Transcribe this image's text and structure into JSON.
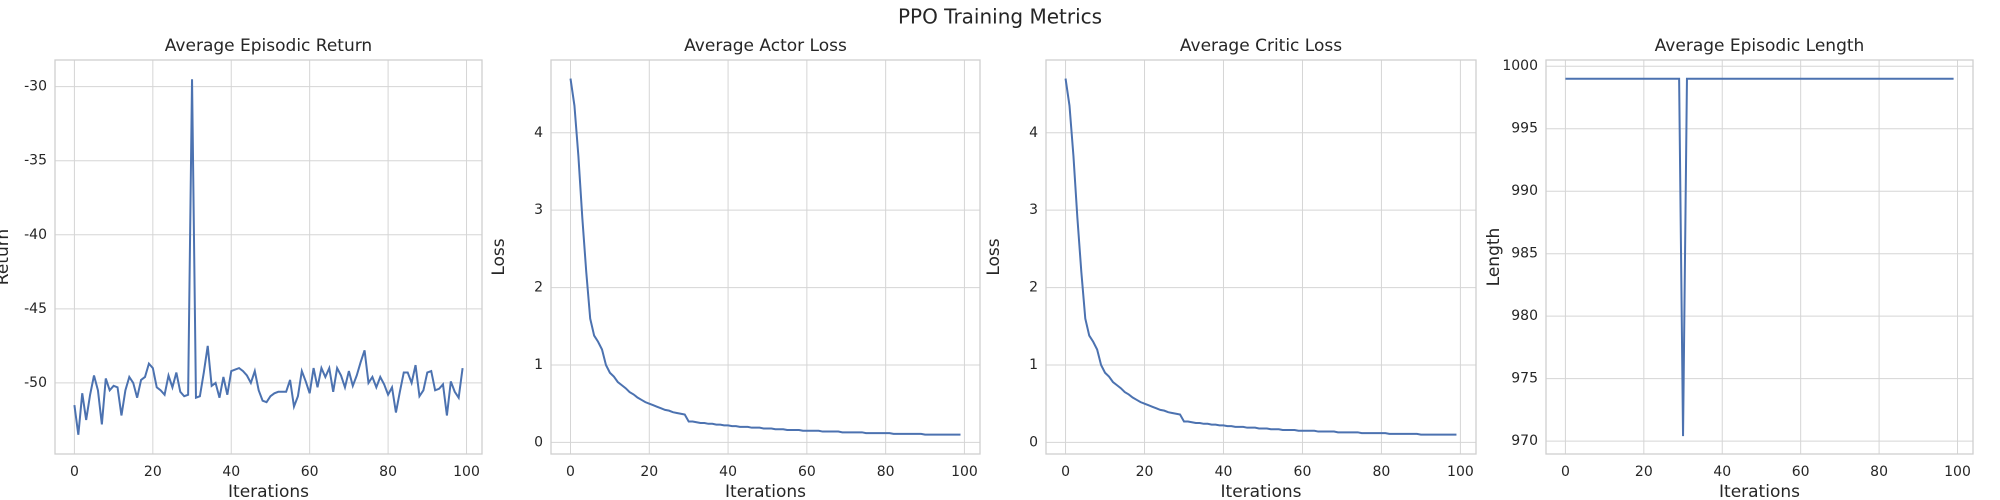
{
  "title": "PPO Training Metrics",
  "chart_data": [
    {
      "type": "line",
      "title": "Average Episodic Return",
      "x_label": "Iterations",
      "y_label": "Return",
      "x": [
        0,
        1,
        2,
        3,
        4,
        5,
        6,
        7,
        8,
        9,
        10,
        11,
        12,
        13,
        14,
        15,
        16,
        17,
        18,
        19,
        20,
        21,
        22,
        23,
        24,
        25,
        26,
        27,
        28,
        29,
        30,
        31,
        32,
        33,
        34,
        35,
        36,
        37,
        38,
        39,
        40,
        41,
        42,
        43,
        44,
        45,
        46,
        47,
        48,
        49,
        50,
        51,
        52,
        53,
        54,
        55,
        56,
        57,
        58,
        59,
        60,
        61,
        62,
        63,
        64,
        65,
        66,
        67,
        68,
        69,
        70,
        71,
        72,
        73,
        74,
        75,
        76,
        77,
        78,
        79,
        80,
        81,
        82,
        83,
        84,
        85,
        86,
        87,
        88,
        89,
        90,
        91,
        92,
        93,
        94,
        95,
        96,
        97,
        98,
        99
      ],
      "series": [
        {
          "color": "#4c72b0",
          "values": [
            -51.5,
            -53.5,
            -50.7,
            -52.5,
            -50.8,
            -49.5,
            -50.5,
            -52.8,
            -49.7,
            -50.5,
            -50.2,
            -50.3,
            -52.2,
            -50.5,
            -49.6,
            -50.0,
            -51.0,
            -49.8,
            -49.6,
            -48.7,
            -49.0,
            -50.3,
            -50.5,
            -50.8,
            -49.5,
            -50.3,
            -49.3,
            -50.6,
            -50.9,
            -50.8,
            -29.5,
            -51.0,
            -50.9,
            -49.3,
            -47.5,
            -50.2,
            -50.0,
            -51.0,
            -49.6,
            -50.8,
            -49.2,
            -49.1,
            -49.0,
            -49.2,
            -49.5,
            -50.0,
            -49.2,
            -50.5,
            -51.2,
            -51.3,
            -50.9,
            -50.7,
            -50.6,
            -50.6,
            -50.6,
            -49.8,
            -51.6,
            -50.9,
            -49.2,
            -49.9,
            -50.7,
            -49.0,
            -50.3,
            -49.0,
            -49.6,
            -49.0,
            -50.6,
            -49.0,
            -49.5,
            -50.3,
            -49.2,
            -50.2,
            -49.5,
            -48.6,
            -47.8,
            -50.0,
            -49.6,
            -50.3,
            -49.6,
            -50.1,
            -50.8,
            -50.3,
            -52.0,
            -50.6,
            -49.3,
            -49.3,
            -50.0,
            -48.8,
            -50.9,
            -50.5,
            -49.3,
            -49.2,
            -50.5,
            -50.4,
            -50.1,
            -52.2,
            -49.9,
            -50.6,
            -51.0,
            -49.0
          ]
        }
      ],
      "xlim": [
        -4.95,
        103.95
      ],
      "xticks": [
        0,
        20,
        40,
        60,
        80,
        100
      ],
      "ylim": [
        -54.8,
        -28.2
      ],
      "yticks": [
        -50,
        -45,
        -40,
        -35,
        -30
      ],
      "grid": true
    },
    {
      "type": "line",
      "title": "Average Actor Loss",
      "x_label": "Iterations",
      "y_label": "Loss",
      "x": [
        0,
        1,
        2,
        3,
        4,
        5,
        6,
        7,
        8,
        9,
        10,
        11,
        12,
        13,
        14,
        15,
        16,
        17,
        18,
        19,
        20,
        21,
        22,
        23,
        24,
        25,
        26,
        27,
        28,
        29,
        30,
        31,
        32,
        33,
        34,
        35,
        36,
        37,
        38,
        39,
        40,
        41,
        42,
        43,
        44,
        45,
        46,
        47,
        48,
        49,
        50,
        51,
        52,
        53,
        54,
        55,
        56,
        57,
        58,
        59,
        60,
        61,
        62,
        63,
        64,
        65,
        66,
        67,
        68,
        69,
        70,
        71,
        72,
        73,
        74,
        75,
        76,
        77,
        78,
        79,
        80,
        81,
        82,
        83,
        84,
        85,
        86,
        87,
        88,
        89,
        90,
        91,
        92,
        93,
        94,
        95,
        96,
        97,
        98,
        99
      ],
      "series": [
        {
          "color": "#4c72b0",
          "values": [
            4.7,
            4.35,
            3.7,
            2.9,
            2.2,
            1.6,
            1.38,
            1.3,
            1.2,
            1.0,
            0.9,
            0.85,
            0.78,
            0.74,
            0.7,
            0.65,
            0.62,
            0.58,
            0.55,
            0.52,
            0.5,
            0.48,
            0.46,
            0.44,
            0.42,
            0.41,
            0.39,
            0.38,
            0.37,
            0.36,
            0.27,
            0.27,
            0.26,
            0.25,
            0.25,
            0.24,
            0.24,
            0.23,
            0.23,
            0.22,
            0.22,
            0.21,
            0.21,
            0.2,
            0.2,
            0.2,
            0.19,
            0.19,
            0.19,
            0.18,
            0.18,
            0.18,
            0.17,
            0.17,
            0.17,
            0.16,
            0.16,
            0.16,
            0.16,
            0.15,
            0.15,
            0.15,
            0.15,
            0.15,
            0.14,
            0.14,
            0.14,
            0.14,
            0.14,
            0.13,
            0.13,
            0.13,
            0.13,
            0.13,
            0.13,
            0.12,
            0.12,
            0.12,
            0.12,
            0.12,
            0.12,
            0.12,
            0.11,
            0.11,
            0.11,
            0.11,
            0.11,
            0.11,
            0.11,
            0.11,
            0.1,
            0.1,
            0.1,
            0.1,
            0.1,
            0.1,
            0.1,
            0.1,
            0.1,
            0.1
          ]
        }
      ],
      "xlim": [
        -4.95,
        103.95
      ],
      "xticks": [
        0,
        20,
        40,
        60,
        80,
        100
      ],
      "ylim": [
        -0.15,
        4.94
      ],
      "yticks": [
        0,
        1,
        2,
        3,
        4
      ],
      "grid": true
    },
    {
      "type": "line",
      "title": "Average Critic Loss",
      "x_label": "Iterations",
      "y_label": "Loss",
      "x": [
        0,
        1,
        2,
        3,
        4,
        5,
        6,
        7,
        8,
        9,
        10,
        11,
        12,
        13,
        14,
        15,
        16,
        17,
        18,
        19,
        20,
        21,
        22,
        23,
        24,
        25,
        26,
        27,
        28,
        29,
        30,
        31,
        32,
        33,
        34,
        35,
        36,
        37,
        38,
        39,
        40,
        41,
        42,
        43,
        44,
        45,
        46,
        47,
        48,
        49,
        50,
        51,
        52,
        53,
        54,
        55,
        56,
        57,
        58,
        59,
        60,
        61,
        62,
        63,
        64,
        65,
        66,
        67,
        68,
        69,
        70,
        71,
        72,
        73,
        74,
        75,
        76,
        77,
        78,
        79,
        80,
        81,
        82,
        83,
        84,
        85,
        86,
        87,
        88,
        89,
        90,
        91,
        92,
        93,
        94,
        95,
        96,
        97,
        98,
        99
      ],
      "series": [
        {
          "color": "#4c72b0",
          "values": [
            4.7,
            4.35,
            3.7,
            2.9,
            2.2,
            1.6,
            1.38,
            1.3,
            1.2,
            1.0,
            0.9,
            0.85,
            0.78,
            0.74,
            0.7,
            0.65,
            0.62,
            0.58,
            0.55,
            0.52,
            0.5,
            0.48,
            0.46,
            0.44,
            0.42,
            0.41,
            0.39,
            0.38,
            0.37,
            0.36,
            0.27,
            0.27,
            0.26,
            0.25,
            0.25,
            0.24,
            0.24,
            0.23,
            0.23,
            0.22,
            0.22,
            0.21,
            0.21,
            0.2,
            0.2,
            0.2,
            0.19,
            0.19,
            0.19,
            0.18,
            0.18,
            0.18,
            0.17,
            0.17,
            0.17,
            0.16,
            0.16,
            0.16,
            0.16,
            0.15,
            0.15,
            0.15,
            0.15,
            0.15,
            0.14,
            0.14,
            0.14,
            0.14,
            0.14,
            0.13,
            0.13,
            0.13,
            0.13,
            0.13,
            0.13,
            0.12,
            0.12,
            0.12,
            0.12,
            0.12,
            0.12,
            0.12,
            0.11,
            0.11,
            0.11,
            0.11,
            0.11,
            0.11,
            0.11,
            0.11,
            0.1,
            0.1,
            0.1,
            0.1,
            0.1,
            0.1,
            0.1,
            0.1,
            0.1,
            0.1
          ]
        }
      ],
      "xlim": [
        -4.95,
        103.95
      ],
      "xticks": [
        0,
        20,
        40,
        60,
        80,
        100
      ],
      "ylim": [
        -0.15,
        4.94
      ],
      "yticks": [
        0,
        1,
        2,
        3,
        4
      ],
      "grid": true
    },
    {
      "type": "line",
      "title": "Average Episodic Length",
      "x_label": "Iterations",
      "y_label": "Length",
      "x": [
        0,
        1,
        2,
        3,
        4,
        5,
        6,
        7,
        8,
        9,
        10,
        11,
        12,
        13,
        14,
        15,
        16,
        17,
        18,
        19,
        20,
        21,
        22,
        23,
        24,
        25,
        26,
        27,
        28,
        29,
        30,
        31,
        32,
        33,
        34,
        35,
        36,
        37,
        38,
        39,
        40,
        41,
        42,
        43,
        44,
        45,
        46,
        47,
        48,
        49,
        50,
        51,
        52,
        53,
        54,
        55,
        56,
        57,
        58,
        59,
        60,
        61,
        62,
        63,
        64,
        65,
        66,
        67,
        68,
        69,
        70,
        71,
        72,
        73,
        74,
        75,
        76,
        77,
        78,
        79,
        80,
        81,
        82,
        83,
        84,
        85,
        86,
        87,
        88,
        89,
        90,
        91,
        92,
        93,
        94,
        95,
        96,
        97,
        98,
        99
      ],
      "series": [
        {
          "color": "#4c72b0",
          "values": [
            999,
            999,
            999,
            999,
            999,
            999,
            999,
            999,
            999,
            999,
            999,
            999,
            999,
            999,
            999,
            999,
            999,
            999,
            999,
            999,
            999,
            999,
            999,
            999,
            999,
            999,
            999,
            999,
            999,
            999,
            970.4,
            999,
            999,
            999,
            999,
            999,
            999,
            999,
            999,
            999,
            999,
            999,
            999,
            999,
            999,
            999,
            999,
            999,
            999,
            999,
            999,
            999,
            999,
            999,
            999,
            999,
            999,
            999,
            999,
            999,
            999,
            999,
            999,
            999,
            999,
            999,
            999,
            999,
            999,
            999,
            999,
            999,
            999,
            999,
            999,
            999,
            999,
            999,
            999,
            999,
            999,
            999,
            999,
            999,
            999,
            999,
            999,
            999,
            999,
            999,
            999,
            999,
            999,
            999,
            999,
            999,
            999,
            999,
            999,
            999
          ]
        }
      ],
      "xlim": [
        -4.95,
        103.95
      ],
      "xticks": [
        0,
        20,
        40,
        60,
        80,
        100
      ],
      "ylim": [
        968.97,
        1000.5
      ],
      "yticks": [
        970,
        975,
        980,
        985,
        990,
        995,
        1000
      ],
      "grid": true
    }
  ]
}
